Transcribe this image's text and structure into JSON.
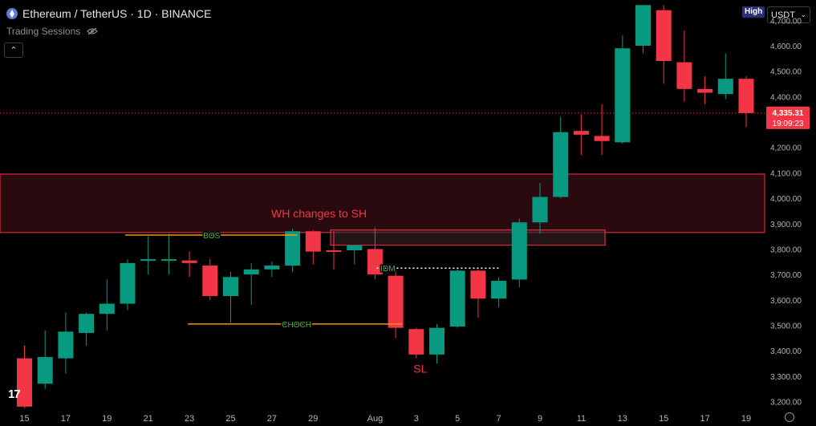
{
  "header": {
    "symbol_title": "Ethereum / TetherUS · 1D · BINANCE",
    "sessions_label": "Trading Sessions",
    "high_badge": "High",
    "currency": "USDT",
    "collapse_glyph": "⌃",
    "tv_logo": "17"
  },
  "colors": {
    "up": "#089981",
    "down": "#f23645",
    "zone_fill": "#2a0a0e",
    "zone_border": "#f23645",
    "level_line": "#f7931a",
    "annotation_green": "#4caf50"
  },
  "chart_data": {
    "type": "candlestick",
    "ylim": [
      3170,
      4780
    ],
    "y_ticks": [
      "3,200.00",
      "3,300.00",
      "3,400.00",
      "3,500.00",
      "3,600.00",
      "3,700.00",
      "3,800.00",
      "3,900.00",
      "4,000.00",
      "4,100.00",
      "4,200.00",
      "4,300.00",
      "4,400.00",
      "4,500.00",
      "4,600.00",
      "4,700.00"
    ],
    "y_tick_values": [
      3200,
      3300,
      3400,
      3500,
      3600,
      3700,
      3800,
      3900,
      4000,
      4100,
      4200,
      4300,
      4400,
      4500,
      4600,
      4700
    ],
    "x_tick_labels": [
      "15",
      "17",
      "19",
      "21",
      "23",
      "25",
      "27",
      "29",
      "Aug",
      "3",
      "5",
      "7",
      "9",
      "11",
      "13",
      "15",
      "17",
      "19"
    ],
    "x_tick_day_index": [
      0,
      2,
      4,
      6,
      8,
      10,
      12,
      14,
      17,
      19,
      21,
      23,
      25,
      27,
      29,
      31,
      33,
      35
    ],
    "current_price": "4,335.31",
    "current_price_value": 4335.31,
    "countdown": "19:09:23",
    "candles": [
      {
        "o": 3370,
        "h": 3420,
        "l": 3175,
        "c": 3180
      },
      {
        "o": 3270,
        "h": 3480,
        "l": 3250,
        "c": 3375
      },
      {
        "o": 3370,
        "h": 3550,
        "l": 3310,
        "c": 3475
      },
      {
        "o": 3470,
        "h": 3550,
        "l": 3420,
        "c": 3545
      },
      {
        "o": 3545,
        "h": 3680,
        "l": 3480,
        "c": 3585
      },
      {
        "o": 3585,
        "h": 3760,
        "l": 3560,
        "c": 3745
      },
      {
        "o": 3755,
        "h": 3850,
        "l": 3700,
        "c": 3760
      },
      {
        "o": 3760,
        "h": 3860,
        "l": 3700,
        "c": 3760
      },
      {
        "o": 3755,
        "h": 3790,
        "l": 3690,
        "c": 3745
      },
      {
        "o": 3735,
        "h": 3760,
        "l": 3600,
        "c": 3615
      },
      {
        "o": 3615,
        "h": 3710,
        "l": 3510,
        "c": 3690
      },
      {
        "o": 3700,
        "h": 3745,
        "l": 3580,
        "c": 3720
      },
      {
        "o": 3720,
        "h": 3750,
        "l": 3690,
        "c": 3735
      },
      {
        "o": 3735,
        "h": 3880,
        "l": 3710,
        "c": 3870
      },
      {
        "o": 3870,
        "h": 3875,
        "l": 3740,
        "c": 3790
      },
      {
        "o": 3795,
        "h": 3870,
        "l": 3720,
        "c": 3790
      },
      {
        "o": 3795,
        "h": 3815,
        "l": 3740,
        "c": 3815
      },
      {
        "o": 3800,
        "h": 3885,
        "l": 3680,
        "c": 3700
      },
      {
        "o": 3695,
        "h": 3720,
        "l": 3450,
        "c": 3490
      },
      {
        "o": 3485,
        "h": 3490,
        "l": 3370,
        "c": 3385
      },
      {
        "o": 3385,
        "h": 3505,
        "l": 3350,
        "c": 3490
      },
      {
        "o": 3495,
        "h": 3720,
        "l": 3490,
        "c": 3715
      },
      {
        "o": 3715,
        "h": 3720,
        "l": 3530,
        "c": 3605
      },
      {
        "o": 3605,
        "h": 3690,
        "l": 3570,
        "c": 3675
      },
      {
        "o": 3680,
        "h": 3920,
        "l": 3650,
        "c": 3905
      },
      {
        "o": 3905,
        "h": 4060,
        "l": 3860,
        "c": 4005
      },
      {
        "o": 4005,
        "h": 4320,
        "l": 4000,
        "c": 4260
      },
      {
        "o": 4265,
        "h": 4330,
        "l": 4170,
        "c": 4250
      },
      {
        "o": 4245,
        "h": 4370,
        "l": 4170,
        "c": 4225
      },
      {
        "o": 4220,
        "h": 4640,
        "l": 4215,
        "c": 4590
      },
      {
        "o": 4600,
        "h": 4760,
        "l": 4570,
        "c": 4760
      },
      {
        "o": 4740,
        "h": 4760,
        "l": 4450,
        "c": 4540
      },
      {
        "o": 4535,
        "h": 4660,
        "l": 4380,
        "c": 4430
      },
      {
        "o": 4430,
        "h": 4480,
        "l": 4370,
        "c": 4415
      },
      {
        "o": 4410,
        "h": 4570,
        "l": 4390,
        "c": 4470
      },
      {
        "o": 4470,
        "h": 4480,
        "l": 4280,
        "c": 4335
      }
    ],
    "annotations": {
      "zone": {
        "low": 3865,
        "high": 4095
      },
      "wh_label": "WH changes to SH",
      "bos_label": "BOS",
      "bos_level": 3855,
      "bos_from": 5,
      "bos_to": 13,
      "choch_label": "CHOCH",
      "choch_level": 3505,
      "choch_from": 8,
      "choch_to": 18,
      "idm_label": "IDM",
      "idm_level": 3725,
      "idm_from": 17,
      "idm_to": 23,
      "small_box": {
        "low": 3815,
        "high": 3875,
        "from": 15,
        "to": 28
      },
      "sl_label": "SL",
      "sl_index": 19,
      "sl_price": 3330
    }
  }
}
